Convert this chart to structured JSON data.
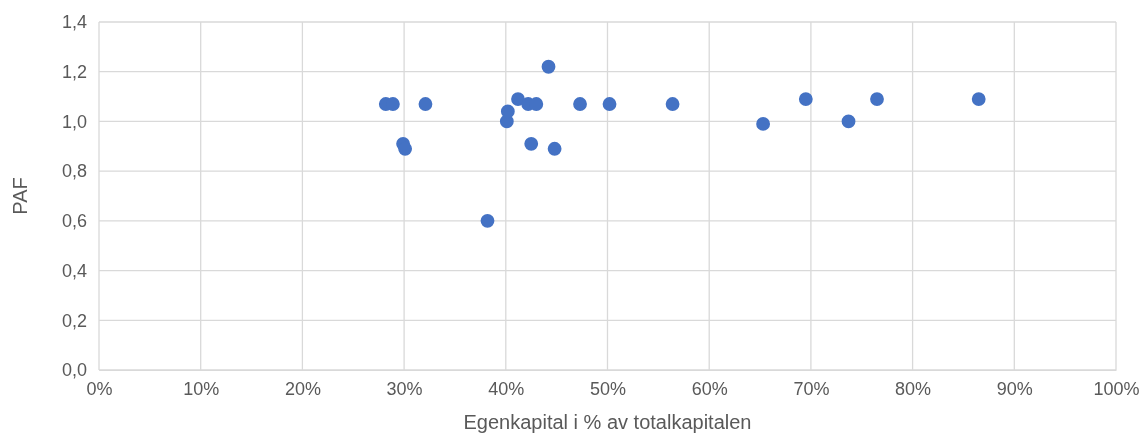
{
  "chart_data": {
    "type": "scatter",
    "xlabel": "Egenkapital i % av totalkapitalen",
    "ylabel": "PAF",
    "x": [
      28.2,
      28.9,
      32.1,
      29.9,
      30.1,
      38.2,
      40.1,
      40.2,
      41.2,
      42.2,
      43.0,
      42.5,
      44.2,
      44.8,
      47.3,
      50.2,
      56.4,
      65.3,
      69.5,
      73.7,
      76.5,
      86.5
    ],
    "series": [
      {
        "color": "#4472c4",
        "values": [
          1.07,
          1.07,
          1.07,
          0.91,
          0.89,
          0.6,
          1.0,
          1.04,
          1.09,
          1.07,
          1.07,
          0.91,
          1.22,
          0.89,
          1.07,
          1.07,
          1.07,
          0.99,
          1.09,
          1.0,
          1.09,
          1.09
        ]
      }
    ],
    "xlim": [
      0,
      100
    ],
    "xticks": [
      {
        "value": 0,
        "label": "0%"
      },
      {
        "value": 10,
        "label": "10%"
      },
      {
        "value": 20,
        "label": "20%"
      },
      {
        "value": 30,
        "label": "30%"
      },
      {
        "value": 40,
        "label": "40%"
      },
      {
        "value": 50,
        "label": "50%"
      },
      {
        "value": 60,
        "label": "60%"
      },
      {
        "value": 70,
        "label": "70%"
      },
      {
        "value": 80,
        "label": "80%"
      },
      {
        "value": 90,
        "label": "90%"
      },
      {
        "value": 100,
        "label": "100%"
      }
    ],
    "ylim": [
      0,
      1.4
    ],
    "yticks": [
      {
        "value": 0,
        "label": "0,0"
      },
      {
        "value": 0.2,
        "label": "0,2"
      },
      {
        "value": 0.4,
        "label": "0,4"
      },
      {
        "value": 0.6,
        "label": "0,6"
      },
      {
        "value": 0.8,
        "label": "0,8"
      },
      {
        "value": 1.0,
        "label": "1,0"
      },
      {
        "value": 1.2,
        "label": "1,2"
      },
      {
        "value": 1.4,
        "label": "1,4"
      }
    ],
    "grid": true,
    "marker": "circle"
  }
}
